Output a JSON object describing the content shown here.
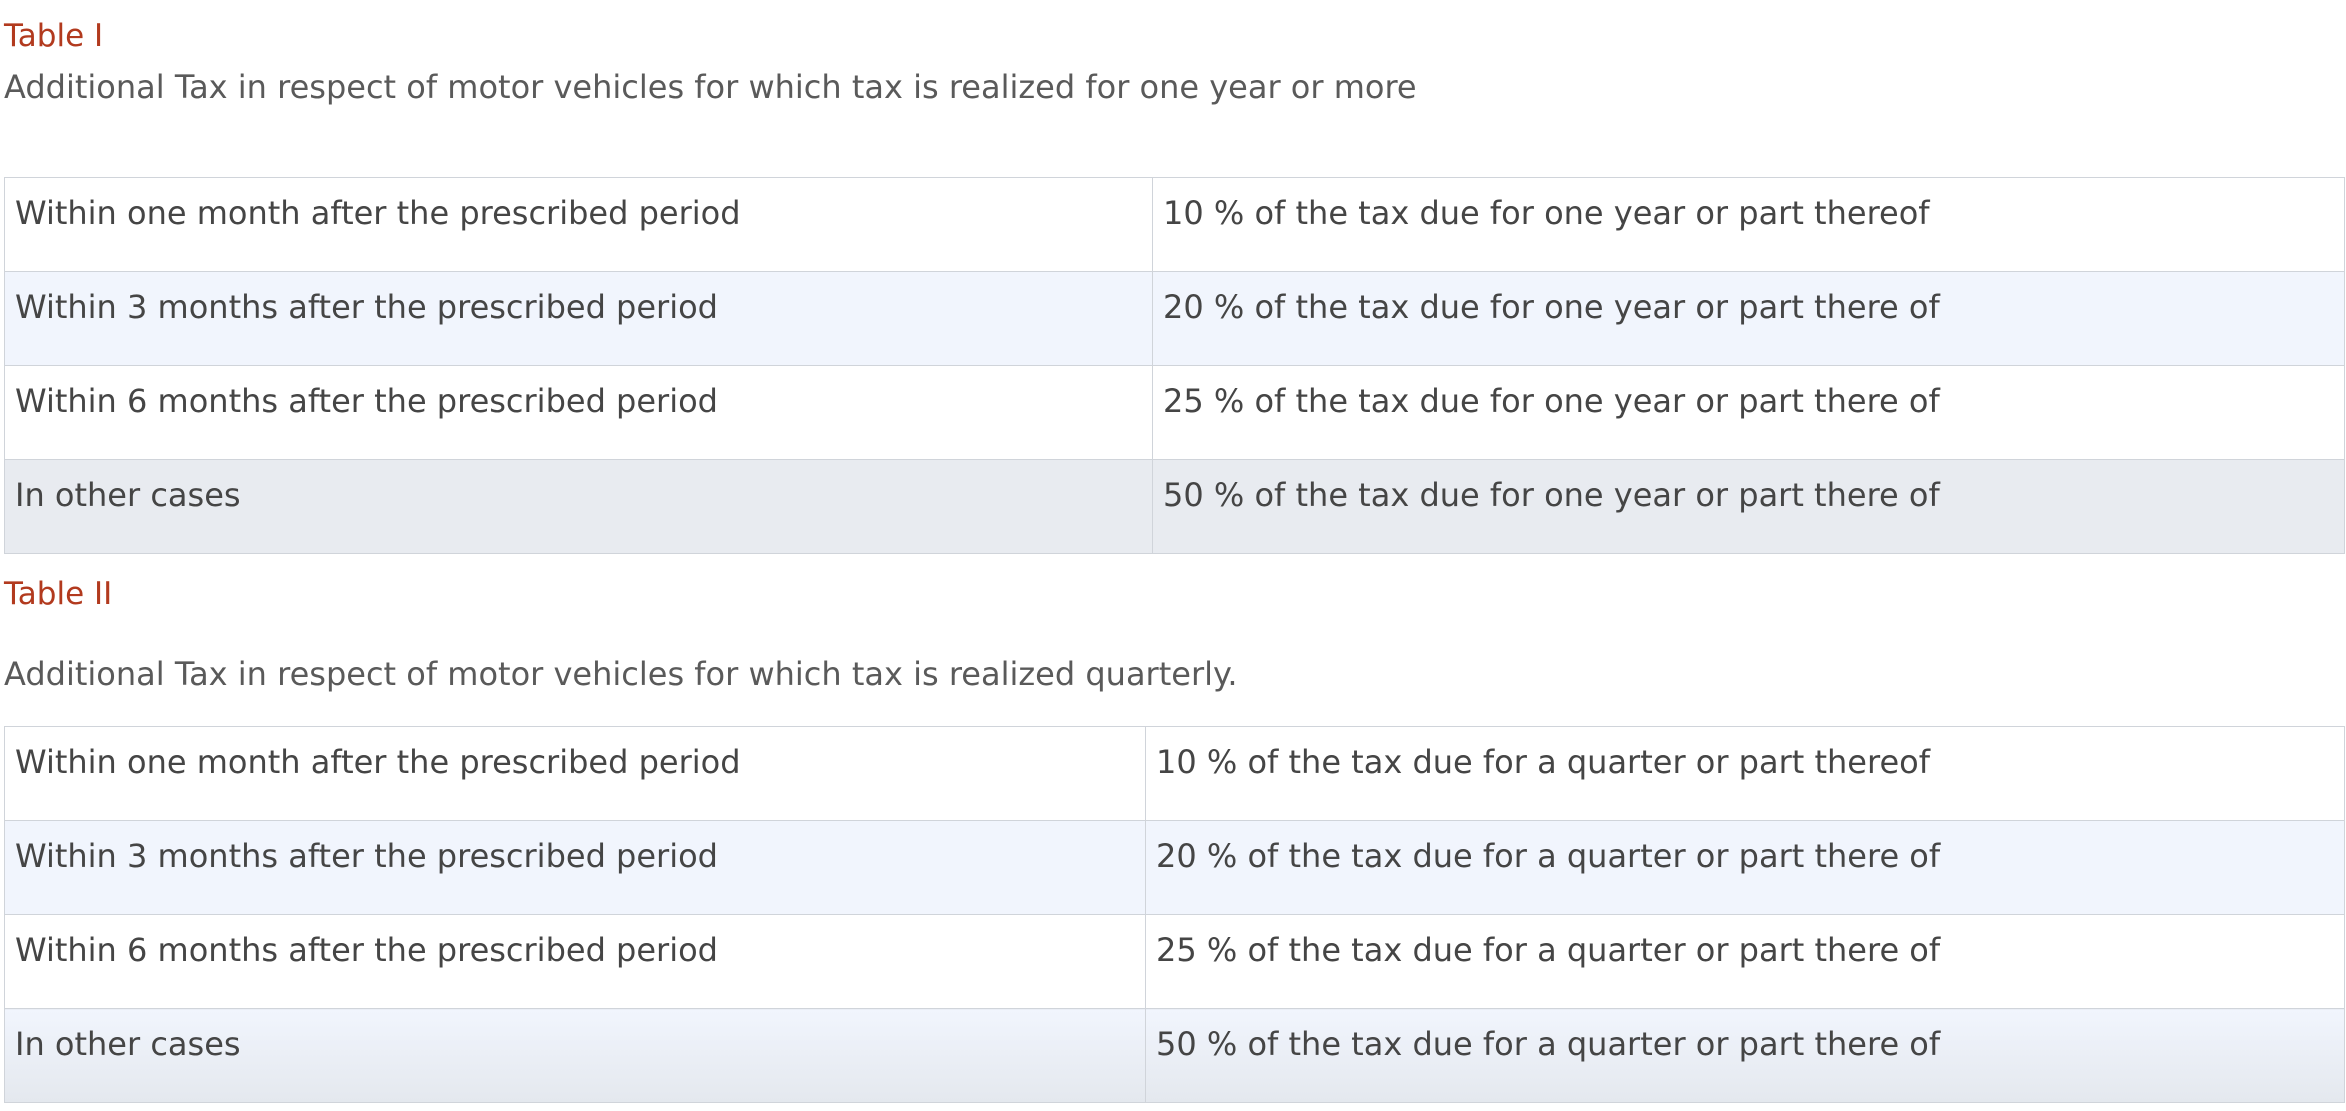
{
  "table1": {
    "title": "Table I",
    "description": "Additional Tax in respect of motor vehicles for which tax is realized for one year or more",
    "rows": [
      {
        "period": "Within one month after the prescribed period",
        "tax": "10 % of the tax due for one year or part thereof"
      },
      {
        "period": "Within 3 months after the prescribed period",
        "tax": "20 % of the tax due for one year or part there of"
      },
      {
        "period": "Within 6 months after the prescribed period",
        "tax": "25 % of the tax due for one year or part there of"
      },
      {
        "period": "In other cases",
        "tax": "50 % of the tax due for one year or part there of"
      }
    ]
  },
  "table2": {
    "title": "Table II",
    "description": "Additional Tax in respect of motor vehicles for which tax is realized quarterly.",
    "rows": [
      {
        "period": "Within one month after the prescribed period",
        "tax": "10 % of the tax due for a quarter or part thereof"
      },
      {
        "period": "Within 3 months after the prescribed period",
        "tax": "20 % of the tax due for a quarter or part there of"
      },
      {
        "period": "Within 6 months after the prescribed period",
        "tax": "25 % of the tax due for a quarter or part there of"
      },
      {
        "period": "In other cases",
        "tax": "50 % of the tax due for a quarter or part there of"
      }
    ]
  },
  "colors": {
    "title_accent": "#b23a1e",
    "row_alt": "#f1f5fd",
    "row_last": "#e8ebf0",
    "border": "#d0d4da"
  }
}
